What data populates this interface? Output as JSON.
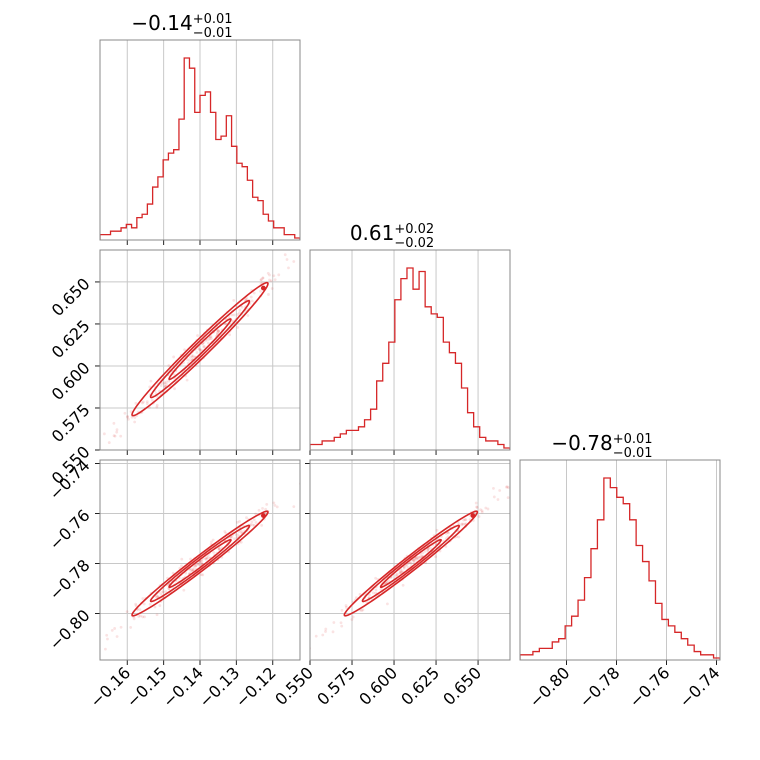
{
  "chart_data": {
    "type": "corner",
    "color": "#d62728",
    "grid": true,
    "parameters": [
      {
        "title": {
          "median": "−0.14",
          "plus": "+0.01",
          "minus": "−0.01"
        },
        "range": [
          -0.1675,
          -0.1125
        ],
        "ticks": [
          -0.16,
          -0.15,
          -0.14,
          -0.13,
          -0.12
        ],
        "tick_labels": [
          "−0.16",
          "−0.15",
          "−0.14",
          "−0.13",
          "−0.12"
        ],
        "median": -0.14,
        "sigma": 0.0085,
        "histogram": [
          1,
          1,
          2,
          2,
          3,
          4,
          3,
          6,
          7,
          10,
          15,
          18,
          23,
          25,
          26,
          35,
          53,
          50,
          37,
          42,
          43,
          37,
          29,
          30,
          36,
          27,
          22,
          21,
          17,
          12,
          11,
          7,
          5,
          3,
          3,
          1,
          1,
          0
        ]
      },
      {
        "title": {
          "median": "0.61",
          "plus": "+0.02",
          "minus": "−0.02"
        },
        "range": [
          0.55,
          0.669
        ],
        "ticks": [
          0.55,
          0.575,
          0.6,
          0.625,
          0.65
        ],
        "tick_labels": [
          "0.550",
          "0.575",
          "0.600",
          "0.625",
          "0.650"
        ],
        "median": 0.61,
        "sigma": 0.018,
        "histogram": [
          1,
          1,
          2,
          2,
          3,
          4,
          5,
          5,
          6,
          8,
          11,
          19,
          24,
          30,
          42,
          48,
          51,
          45,
          50,
          40,
          38,
          37,
          30,
          27,
          24,
          17,
          10,
          6,
          3,
          2,
          2,
          1,
          0
        ]
      },
      {
        "title": {
          "median": "−0.78",
          "plus": "+0.01",
          "minus": "−0.01"
        },
        "range": [
          -0.8186,
          -0.7386
        ],
        "ticks": [
          -0.8,
          -0.78,
          -0.76,
          -0.74
        ],
        "tick_labels": [
          "−0.80",
          "−0.78",
          "−0.76",
          "−0.74"
        ],
        "median": -0.78,
        "sigma": 0.0095,
        "histogram": [
          1,
          1,
          2,
          3,
          3,
          5,
          6,
          10,
          13,
          18,
          25,
          34,
          43,
          56,
          53,
          50,
          48,
          43,
          35,
          30,
          24,
          17,
          12,
          10,
          8,
          6,
          4,
          2,
          1,
          1,
          0
        ]
      }
    ]
  }
}
